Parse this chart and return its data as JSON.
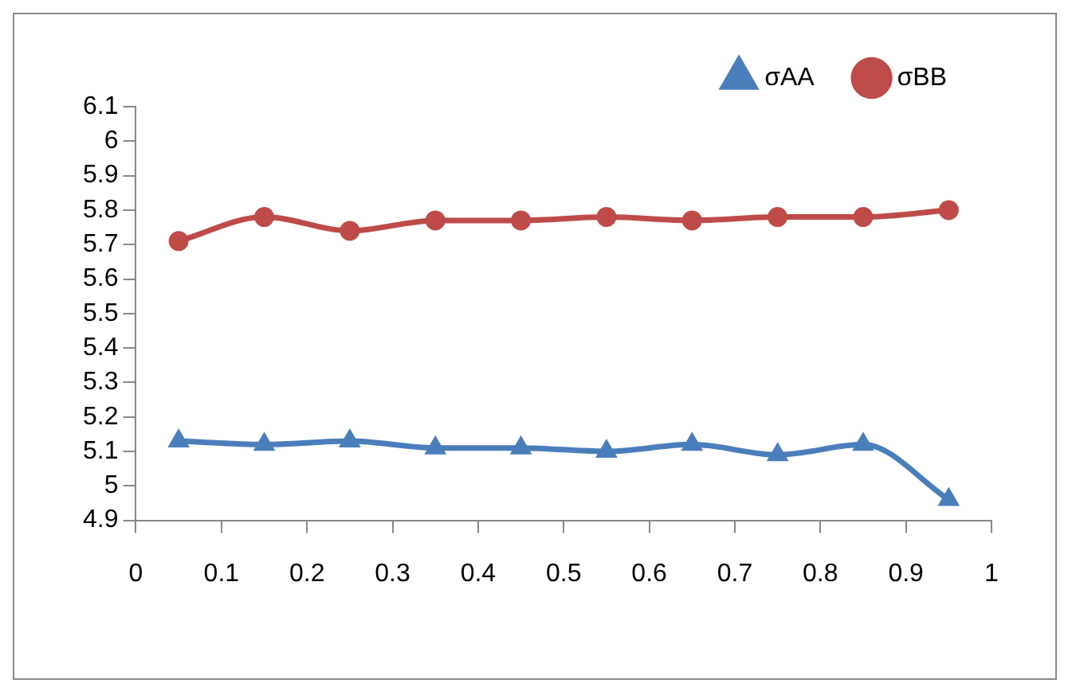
{
  "chart_data": {
    "type": "line",
    "x": [
      0.05,
      0.15,
      0.25,
      0.35,
      0.45,
      0.55,
      0.65,
      0.75,
      0.85,
      0.95
    ],
    "series": [
      {
        "name": "σAA",
        "color": "#4a7ebb",
        "marker": "triangle",
        "values": [
          5.13,
          5.12,
          5.13,
          5.11,
          5.11,
          5.1,
          5.12,
          5.09,
          5.12,
          4.96
        ]
      },
      {
        "name": "σBB",
        "color": "#be4b48",
        "marker": "circle",
        "values": [
          5.71,
          5.78,
          5.74,
          5.77,
          5.77,
          5.78,
          5.77,
          5.78,
          5.78,
          5.8
        ]
      }
    ],
    "xlim": [
      0,
      1
    ],
    "xticks": [
      0,
      0.1,
      0.2,
      0.3,
      0.4,
      0.5,
      0.6,
      0.7,
      0.8,
      0.9,
      1
    ],
    "ylim": [
      4.9,
      6.1
    ],
    "yticks": [
      4.9,
      5,
      5.1,
      5.2,
      5.3,
      5.4,
      5.5,
      5.6,
      5.7,
      5.8,
      5.9,
      6,
      6.1
    ],
    "grid": false,
    "legend": "top right"
  }
}
